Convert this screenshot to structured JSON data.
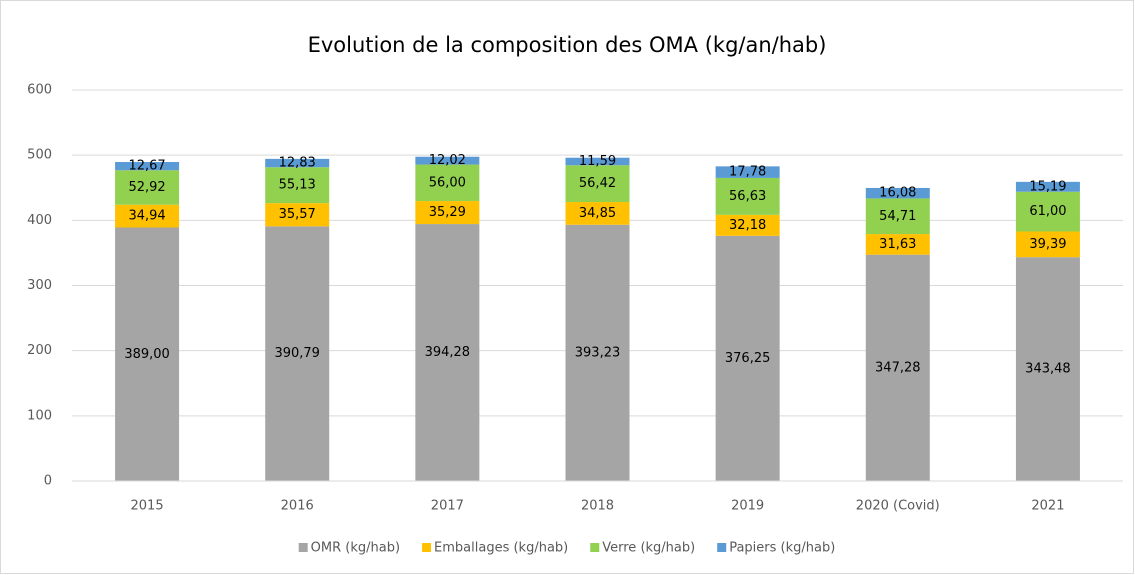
{
  "chart_data": {
    "type": "stacked_bar",
    "title": "Evolution de la composition des OMA (kg/an/hab)",
    "categories": [
      "2015",
      "2016",
      "2017",
      "2018",
      "2019",
      "2020 (Covid)",
      "2021"
    ],
    "series": [
      {
        "name": "OMR (kg/hab)",
        "color": "#a5a5a5",
        "values": [
          389.0,
          390.79,
          394.28,
          393.23,
          376.25,
          347.28,
          343.48
        ],
        "value_labels": [
          "389,00",
          "390,79",
          "394,28",
          "393,23",
          "376,25",
          "347,28",
          "343,48"
        ]
      },
      {
        "name": "Emballages (kg/hab)",
        "color": "#ffc000",
        "values": [
          34.94,
          35.57,
          35.29,
          34.85,
          32.18,
          31.63,
          39.39
        ],
        "value_labels": [
          "34,94",
          "35,57",
          "35,29",
          "34,85",
          "32,18",
          "31,63",
          "39,39"
        ]
      },
      {
        "name": "Verre (kg/hab)",
        "color": "#92d050",
        "values": [
          52.92,
          55.13,
          56.0,
          56.42,
          56.63,
          54.71,
          61.0
        ],
        "value_labels": [
          "52,92",
          "55,13",
          "56,00",
          "56,42",
          "56,63",
          "54,71",
          "61,00"
        ]
      },
      {
        "name": "Papiers (kg/hab)",
        "color": "#5b9bd5",
        "values": [
          12.67,
          12.83,
          12.02,
          11.59,
          17.78,
          16.08,
          15.19
        ],
        "value_labels": [
          "12,67",
          "12,83",
          "12,02",
          "11,59",
          "17,78",
          "16,08",
          "15,19"
        ]
      }
    ],
    "ylim": [
      0,
      600
    ],
    "yticks": [
      0,
      100,
      200,
      300,
      400,
      500,
      600
    ],
    "grid": true,
    "legend": "bottom"
  }
}
